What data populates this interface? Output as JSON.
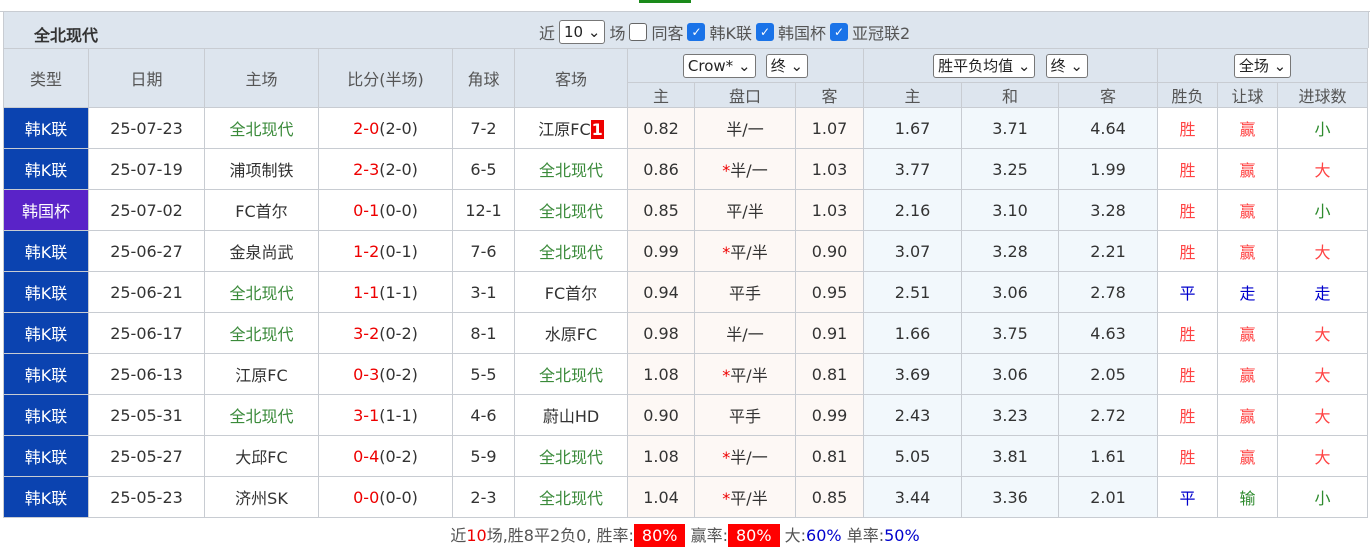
{
  "team": "全北现代",
  "filters": {
    "near": "近",
    "count": "10",
    "unit": "场",
    "same_away": "同客",
    "leagues": [
      "韩K联",
      "韩国杯",
      "亚冠联2"
    ]
  },
  "headers": {
    "type": "类型",
    "date": "日期",
    "home": "主场",
    "score": "比分(半场)",
    "corner": "角球",
    "away": "客场",
    "company": "Crow*",
    "odds_stage": "终",
    "avg_select": "胜平负均值",
    "avg_stage": "终",
    "scope": "全场",
    "sub": [
      "主",
      "盘口",
      "客",
      "主",
      "和",
      "客",
      "胜负",
      "让球",
      "进球数"
    ]
  },
  "rows": [
    {
      "type": "韩K联",
      "date": "25-07-23",
      "home": "全北现代",
      "score": "2-0",
      "half": "(2-0)",
      "corner": "7-2",
      "away": "江原FC",
      "badge": "1",
      "o": [
        "0.82",
        "半/一",
        "1.07"
      ],
      "a": [
        "1.67",
        "3.71",
        "4.64"
      ],
      "r": [
        "胜",
        "赢",
        "小"
      ]
    },
    {
      "type": "韩K联",
      "date": "25-07-19",
      "home": "浦项制铁",
      "score": "2-3",
      "half": "(2-0)",
      "corner": "6-5",
      "away": "全北现代",
      "o": [
        "0.86",
        "*半/一",
        "1.03"
      ],
      "a": [
        "3.77",
        "3.25",
        "1.99"
      ],
      "r": [
        "胜",
        "赢",
        "大"
      ]
    },
    {
      "type": "韩国杯",
      "date": "25-07-02",
      "home": "FC首尔",
      "score": "0-1",
      "half": "(0-0)",
      "corner": "12-1",
      "away": "全北现代",
      "o": [
        "0.85",
        "平/半",
        "1.03"
      ],
      "a": [
        "2.16",
        "3.10",
        "3.28"
      ],
      "r": [
        "胜",
        "赢",
        "小"
      ]
    },
    {
      "type": "韩K联",
      "date": "25-06-27",
      "home": "金泉尚武",
      "score": "1-2",
      "half": "(0-1)",
      "corner": "7-6",
      "away": "全北现代",
      "o": [
        "0.99",
        "*平/半",
        "0.90"
      ],
      "a": [
        "3.07",
        "3.28",
        "2.21"
      ],
      "r": [
        "胜",
        "赢",
        "大"
      ]
    },
    {
      "type": "韩K联",
      "date": "25-06-21",
      "home": "全北现代",
      "score": "1-1",
      "half": "(1-1)",
      "corner": "3-1",
      "away": "FC首尔",
      "o": [
        "0.94",
        "平手",
        "0.95"
      ],
      "a": [
        "2.51",
        "3.06",
        "2.78"
      ],
      "r": [
        "平",
        "走",
        "走"
      ]
    },
    {
      "type": "韩K联",
      "date": "25-06-17",
      "home": "全北现代",
      "score": "3-2",
      "half": "(0-2)",
      "corner": "8-1",
      "away": "水原FC",
      "o": [
        "0.98",
        "半/一",
        "0.91"
      ],
      "a": [
        "1.66",
        "3.75",
        "4.63"
      ],
      "r": [
        "胜",
        "赢",
        "大"
      ]
    },
    {
      "type": "韩K联",
      "date": "25-06-13",
      "home": "江原FC",
      "score": "0-3",
      "half": "(0-2)",
      "corner": "5-5",
      "away": "全北现代",
      "o": [
        "1.08",
        "*平/半",
        "0.81"
      ],
      "a": [
        "3.69",
        "3.06",
        "2.05"
      ],
      "r": [
        "胜",
        "赢",
        "大"
      ]
    },
    {
      "type": "韩K联",
      "date": "25-05-31",
      "home": "全北现代",
      "score": "3-1",
      "half": "(1-1)",
      "corner": "4-6",
      "away": "蔚山HD",
      "o": [
        "0.90",
        "平手",
        "0.99"
      ],
      "a": [
        "2.43",
        "3.23",
        "2.72"
      ],
      "r": [
        "胜",
        "赢",
        "大"
      ]
    },
    {
      "type": "韩K联",
      "date": "25-05-27",
      "home": "大邱FC",
      "score": "0-4",
      "half": "(0-2)",
      "corner": "5-9",
      "away": "全北现代",
      "o": [
        "1.08",
        "*半/一",
        "0.81"
      ],
      "a": [
        "5.05",
        "3.81",
        "1.61"
      ],
      "r": [
        "胜",
        "赢",
        "大"
      ]
    },
    {
      "type": "韩K联",
      "date": "25-05-23",
      "home": "济州SK",
      "score": "0-0",
      "half": "(0-0)",
      "corner": "2-3",
      "away": "全北现代",
      "o": [
        "1.04",
        "*平/半",
        "0.85"
      ],
      "a": [
        "3.44",
        "3.36",
        "2.01"
      ],
      "r": [
        "平",
        "输",
        "小"
      ]
    }
  ],
  "footer": {
    "p1": "近",
    "n": "10",
    "p2": "场,胜8平2负0, 胜率:",
    "win_rate": "80%",
    "p3": "赢率:",
    "cover_rate": "80%",
    "p4": "大:",
    "over": "60%",
    "p5": "单率:",
    "odd": "50%"
  },
  "colors": {
    "win": "#ff4444",
    "draw": "#0000cc",
    "lose": "#2e8b2e",
    "type_league": "#0b43b0",
    "type_cup": "#5a23c8"
  }
}
